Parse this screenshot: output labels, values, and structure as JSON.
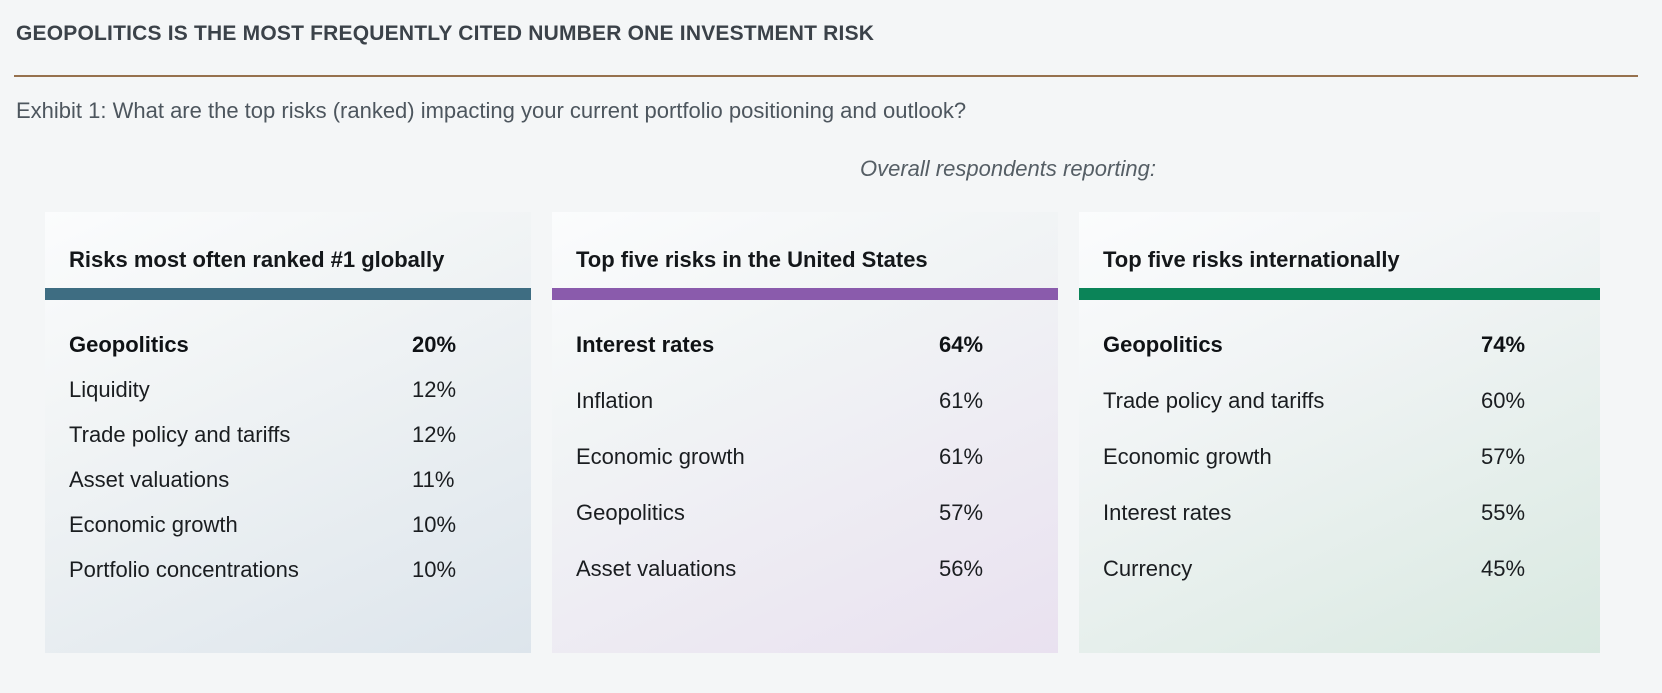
{
  "header": {
    "title": "GEOPOLITICS IS THE MOST FREQUENTLY CITED NUMBER ONE INVESTMENT RISK",
    "exhibit_caption": "Exhibit 1: What are the top risks (ranked) impacting your current portfolio positioning and outlook?"
  },
  "note": "Overall respondents reporting:",
  "colors": {
    "page_background": "#f4f6f7",
    "header_rule": "#96714e",
    "accent_teal": "#3e6d82",
    "accent_purple": "#8a5bac",
    "accent_green": "#0b8458"
  },
  "panels": [
    {
      "title": "Risks most often ranked #1 globally",
      "accent": "#3e6d82",
      "tint": "#dde5ec",
      "rows": [
        {
          "label": "Geopolitics",
          "value": "20%"
        },
        {
          "label": "Liquidity",
          "value": "12%"
        },
        {
          "label": "Trade policy and tariffs",
          "value": "12%"
        },
        {
          "label": "Asset valuations",
          "value": "11%"
        },
        {
          "label": "Economic growth",
          "value": "10%"
        },
        {
          "label": "Portfolio concentrations",
          "value": "10%"
        }
      ]
    },
    {
      "title": "Top five risks in the United States",
      "accent": "#8a5bac",
      "tint": "#e9e1f0",
      "rows": [
        {
          "label": "Interest rates",
          "value": "64%"
        },
        {
          "label": "Inflation",
          "value": "61%"
        },
        {
          "label": "Economic growth",
          "value": "61%"
        },
        {
          "label": "Geopolitics",
          "value": "57%"
        },
        {
          "label": "Asset valuations",
          "value": "56%"
        }
      ]
    },
    {
      "title": "Top five risks internationally",
      "accent": "#0b8458",
      "tint": "#d9e9e1",
      "rows": [
        {
          "label": "Geopolitics",
          "value": "74%"
        },
        {
          "label": "Trade policy and tariffs",
          "value": "60%"
        },
        {
          "label": "Economic growth",
          "value": "57%"
        },
        {
          "label": "Interest rates",
          "value": "55%"
        },
        {
          "label": "Currency",
          "value": "45%"
        }
      ]
    }
  ],
  "chart_data": [
    {
      "type": "table",
      "title": "Risks most often ranked #1 globally",
      "categories": [
        "Geopolitics",
        "Liquidity",
        "Trade policy and tariffs",
        "Asset valuations",
        "Economic growth",
        "Portfolio concentrations"
      ],
      "values": [
        20,
        12,
        12,
        11,
        10,
        10
      ],
      "unit": "%"
    },
    {
      "type": "table",
      "title": "Top five risks in the United States",
      "categories": [
        "Interest rates",
        "Inflation",
        "Economic growth",
        "Geopolitics",
        "Asset valuations"
      ],
      "values": [
        64,
        61,
        61,
        57,
        56
      ],
      "unit": "%"
    },
    {
      "type": "table",
      "title": "Top five risks internationally",
      "categories": [
        "Geopolitics",
        "Trade policy and tariffs",
        "Economic growth",
        "Interest rates",
        "Currency"
      ],
      "values": [
        74,
        60,
        57,
        55,
        45
      ],
      "unit": "%"
    }
  ]
}
